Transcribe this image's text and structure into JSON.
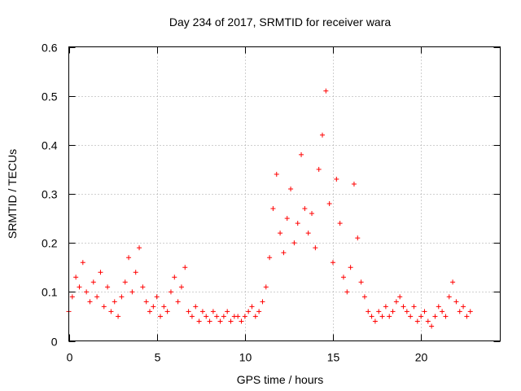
{
  "chart_data": {
    "type": "scatter",
    "title": "Day 234 of 2017, SRMTID for receiver wara",
    "xlabel": "GPS time / hours",
    "ylabel": "SRMTID / TECUs",
    "xlim": [
      0,
      24.5
    ],
    "ylim": [
      0,
      0.6
    ],
    "xticks": [
      0,
      5,
      10,
      15,
      20
    ],
    "yticks": [
      0,
      0.1,
      0.2,
      0.3,
      0.4,
      0.5,
      0.6
    ],
    "xtick_labels": [
      "0",
      "5",
      "10",
      "15",
      "20"
    ],
    "ytick_labels": [
      "0",
      "0.1",
      "0.2",
      "0.3",
      "0.4",
      "0.5",
      "0.6"
    ],
    "grid": true,
    "marker": "+",
    "color": "#ff0000",
    "series": [
      {
        "name": "SRMTID",
        "x": [
          0.0,
          0.2,
          0.4,
          0.6,
          0.8,
          1.0,
          1.2,
          1.4,
          1.6,
          1.8,
          2.0,
          2.2,
          2.4,
          2.6,
          2.8,
          3.0,
          3.2,
          3.4,
          3.6,
          3.8,
          4.0,
          4.2,
          4.4,
          4.6,
          4.8,
          5.0,
          5.2,
          5.4,
          5.6,
          5.8,
          6.0,
          6.2,
          6.4,
          6.6,
          6.8,
          7.0,
          7.2,
          7.4,
          7.6,
          7.8,
          8.0,
          8.2,
          8.4,
          8.6,
          8.8,
          9.0,
          9.2,
          9.4,
          9.6,
          9.8,
          10.0,
          10.2,
          10.4,
          10.6,
          10.8,
          11.0,
          11.2,
          11.4,
          11.6,
          11.8,
          12.0,
          12.2,
          12.4,
          12.6,
          12.8,
          13.0,
          13.2,
          13.4,
          13.6,
          13.8,
          14.0,
          14.2,
          14.4,
          14.6,
          14.8,
          15.0,
          15.2,
          15.4,
          15.6,
          15.8,
          16.0,
          16.2,
          16.4,
          16.6,
          16.8,
          17.0,
          17.2,
          17.4,
          17.6,
          17.8,
          18.0,
          18.2,
          18.4,
          18.6,
          18.8,
          19.0,
          19.2,
          19.4,
          19.6,
          19.8,
          20.0,
          20.2,
          20.4,
          20.6,
          20.8,
          21.0,
          21.2,
          21.4,
          21.6,
          21.8,
          22.0,
          22.2,
          22.4,
          22.6,
          22.8
        ],
        "y": [
          0.06,
          0.09,
          0.13,
          0.11,
          0.16,
          0.1,
          0.08,
          0.12,
          0.09,
          0.14,
          0.07,
          0.11,
          0.06,
          0.08,
          0.05,
          0.09,
          0.12,
          0.17,
          0.1,
          0.14,
          0.19,
          0.11,
          0.08,
          0.06,
          0.07,
          0.09,
          0.05,
          0.07,
          0.06,
          0.1,
          0.13,
          0.08,
          0.11,
          0.15,
          0.06,
          0.05,
          0.07,
          0.04,
          0.06,
          0.05,
          0.04,
          0.06,
          0.05,
          0.04,
          0.05,
          0.06,
          0.04,
          0.05,
          0.05,
          0.04,
          0.05,
          0.06,
          0.07,
          0.05,
          0.06,
          0.08,
          0.11,
          0.17,
          0.27,
          0.34,
          0.22,
          0.18,
          0.25,
          0.31,
          0.2,
          0.24,
          0.38,
          0.27,
          0.22,
          0.26,
          0.19,
          0.35,
          0.42,
          0.51,
          0.28,
          0.16,
          0.33,
          0.24,
          0.13,
          0.1,
          0.15,
          0.32,
          0.21,
          0.12,
          0.09,
          0.06,
          0.05,
          0.04,
          0.06,
          0.05,
          0.07,
          0.05,
          0.06,
          0.08,
          0.09,
          0.07,
          0.06,
          0.05,
          0.07,
          0.04,
          0.05,
          0.06,
          0.04,
          0.03,
          0.05,
          0.07,
          0.06,
          0.05,
          0.09,
          0.12,
          0.08,
          0.06,
          0.07,
          0.05,
          0.06
        ]
      }
    ]
  }
}
